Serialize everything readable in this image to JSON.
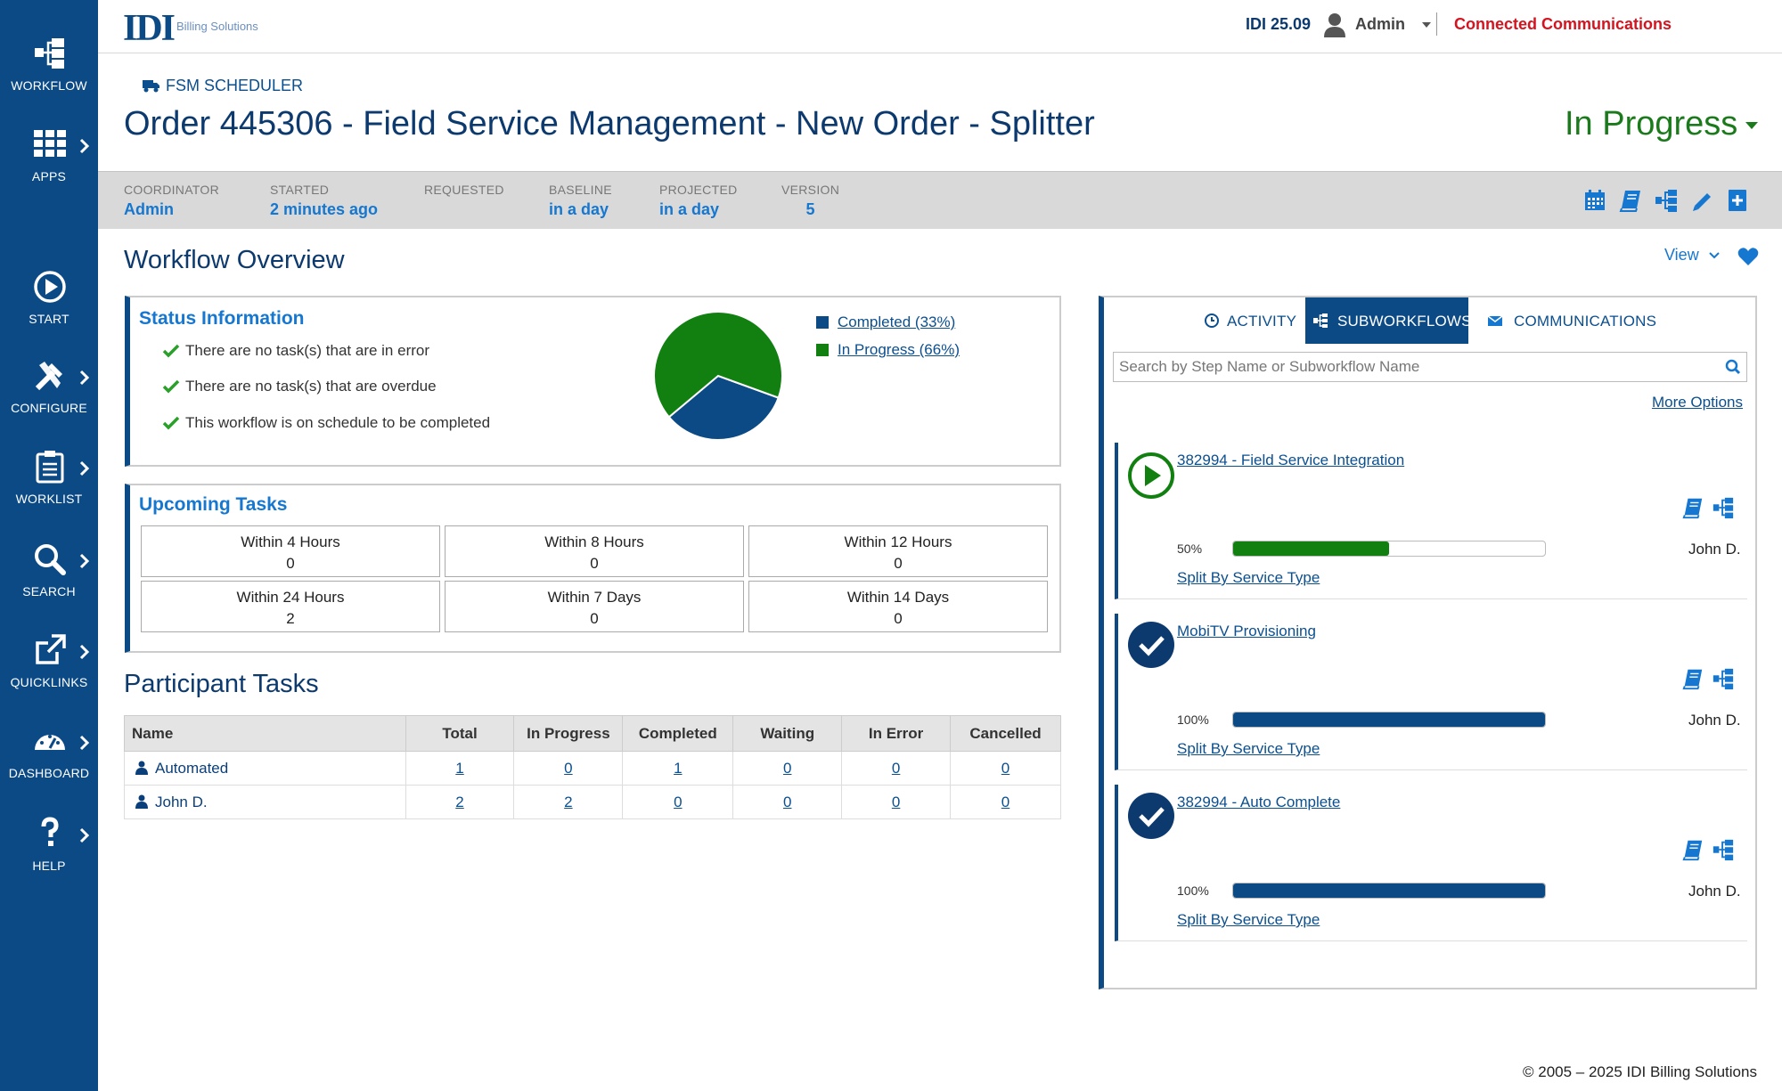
{
  "sidebar": {
    "items": [
      {
        "label": "WORKFLOW",
        "icon": "workflow-icon"
      },
      {
        "label": "APPS",
        "icon": "apps-grid-icon"
      },
      {
        "label": "START",
        "icon": "play-circle-icon"
      },
      {
        "label": "CONFIGURE",
        "icon": "tools-icon"
      },
      {
        "label": "WORKLIST",
        "icon": "clipboard-icon"
      },
      {
        "label": "SEARCH",
        "icon": "search-icon"
      },
      {
        "label": "QUICKLINKS",
        "icon": "external-link-icon"
      },
      {
        "label": "DASHBOARD",
        "icon": "dashboard-gauge-icon"
      },
      {
        "label": "HELP",
        "icon": "question-icon"
      }
    ]
  },
  "topbar": {
    "logo_text": "IDI",
    "logo_subtitle": "Billing Solutions",
    "version": "IDI 25.09",
    "user": "Admin",
    "company": "Connected Communications"
  },
  "header": {
    "module": "FSM SCHEDULER",
    "title": "Order 445306 - Field Service Management - New Order - Splitter",
    "status": "In Progress"
  },
  "infobar": {
    "coordinator_label": "COORDINATOR",
    "coordinator": "Admin",
    "started_label": "STARTED",
    "started": "2 minutes ago",
    "requested_label": "REQUESTED",
    "requested": "",
    "baseline_label": "BASELINE",
    "baseline": "in a day",
    "projected_label": "PROJECTED",
    "projected": "in a day",
    "version_label": "VERSION",
    "version": "5"
  },
  "overview": {
    "title": "Workflow Overview",
    "view_label": "View",
    "status_info": {
      "title": "Status Information",
      "checks": [
        "There are no task(s) that are in error",
        "There are no task(s) that are overdue",
        "This workflow is on schedule to be completed"
      ]
    },
    "pie": {
      "slices": [
        {
          "label": "Completed (33%)",
          "value": 33,
          "color": "#0c4a86"
        },
        {
          "label": "In Progress (66%)",
          "value": 66,
          "color": "#118011"
        }
      ]
    },
    "upcoming": {
      "title": "Upcoming Tasks",
      "cells": [
        {
          "label": "Within 4 Hours",
          "value": "0"
        },
        {
          "label": "Within 8 Hours",
          "value": "0"
        },
        {
          "label": "Within 12 Hours",
          "value": "0"
        },
        {
          "label": "Within 24 Hours",
          "value": "2"
        },
        {
          "label": "Within 7 Days",
          "value": "0"
        },
        {
          "label": "Within 14 Days",
          "value": "0"
        }
      ]
    }
  },
  "participants": {
    "title": "Participant Tasks",
    "columns": [
      "Name",
      "Total",
      "In Progress",
      "Completed",
      "Waiting",
      "In Error",
      "Cancelled"
    ],
    "rows": [
      {
        "name": "Automated",
        "values": [
          "1",
          "0",
          "1",
          "0",
          "0",
          "0"
        ]
      },
      {
        "name": "John D.",
        "values": [
          "2",
          "2",
          "0",
          "0",
          "0",
          "0"
        ]
      }
    ]
  },
  "right_panel": {
    "tabs": {
      "activity": "ACTIVITY",
      "subworkflows": "SUBWORKFLOWS",
      "communications": "COMMUNICATIONS"
    },
    "search_placeholder": "Search by Step Name or Subworkflow Name",
    "more_options": "More Options",
    "subworkflows": [
      {
        "title": "382994 - Field Service Integration",
        "status": "running",
        "percent_label": "50%",
        "progress": 0.5,
        "bar_color": "#118011",
        "owner": "John D.",
        "type": "Split By Service Type"
      },
      {
        "title": "MobiTV Provisioning",
        "status": "completed",
        "percent_label": "100%",
        "progress": 1.0,
        "bar_color": "#0c4a86",
        "owner": "John D.",
        "type": "Split By Service Type"
      },
      {
        "title": "382994 - Auto Complete",
        "status": "completed",
        "percent_label": "100%",
        "progress": 1.0,
        "bar_color": "#0c4a86",
        "owner": "John D.",
        "type": "Split By Service Type"
      }
    ]
  },
  "footer": {
    "copyright": "© 2005 – 2025   IDI Billing Solutions"
  }
}
